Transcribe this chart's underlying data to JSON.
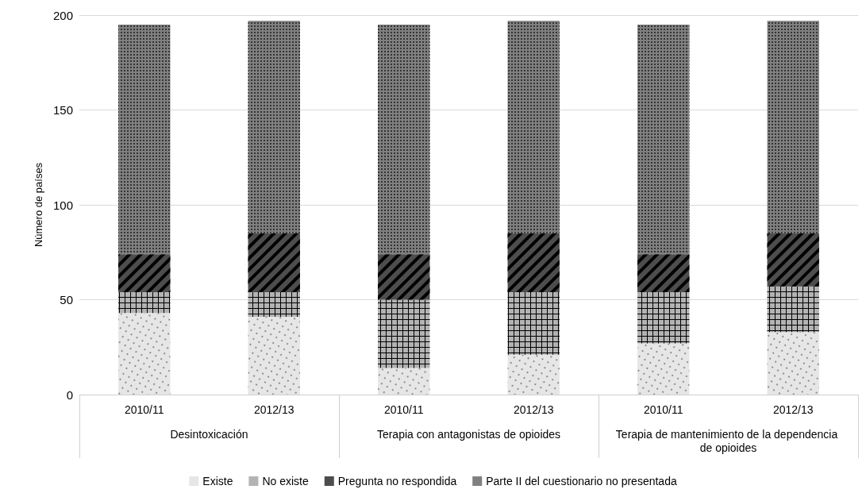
{
  "chart_data": {
    "type": "bar",
    "stacked": true,
    "ylabel": "Número de países",
    "categories": [
      "2010/11",
      "2012/13",
      "2010/11",
      "2012/13",
      "2010/11",
      "2012/13"
    ],
    "annotations": [
      "Desintoxicación",
      "Terapia con antagonistas de opioides",
      "Terapia de mantenimiento de la dependencia de opioides"
    ],
    "series": [
      {
        "name": "Existe",
        "color": "#e6e6e6",
        "values": [
          43,
          41,
          14,
          21,
          27,
          33
        ]
      },
      {
        "name": "No existe",
        "color": "#b3b3b3",
        "values": [
          11,
          13,
          36,
          33,
          27,
          24
        ]
      },
      {
        "name": "Pregunta no respondida",
        "color": "#4d4d4d",
        "values": [
          20,
          31,
          24,
          31,
          20,
          28
        ]
      },
      {
        "name": "Parte II del cuestionario no presentada",
        "color": "#808080",
        "values": [
          121,
          112,
          121,
          112,
          121,
          112
        ]
      }
    ],
    "ylim": [
      0,
      200
    ],
    "yticks": [
      0,
      50,
      100,
      150,
      200
    ],
    "grid": "y",
    "legend": "bottom"
  }
}
